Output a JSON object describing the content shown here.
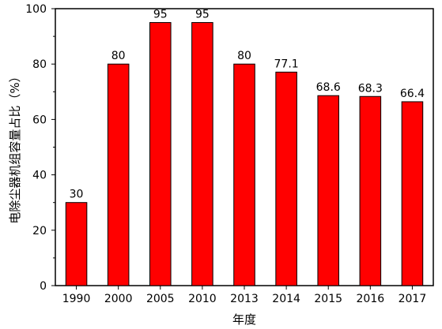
{
  "chart_data": {
    "type": "bar",
    "categories": [
      "1990",
      "2000",
      "2005",
      "2010",
      "2013",
      "2014",
      "2015",
      "2016",
      "2017"
    ],
    "values": [
      30,
      80,
      95,
      95,
      80,
      77.1,
      68.6,
      68.3,
      66.4
    ],
    "value_labels": [
      "30",
      "80",
      "95",
      "95",
      "80",
      "77.1",
      "68.6",
      "68.3",
      "66.4"
    ],
    "xlabel": "年度",
    "ylabel": "电除尘器机组容量占比（%）",
    "ylim": [
      0,
      100
    ],
    "yticks": [
      0,
      20,
      40,
      60,
      80,
      100
    ],
    "bar_color": "#ff0000",
    "bar_edge_color": "#000000",
    "grid": false,
    "legend": "none"
  }
}
